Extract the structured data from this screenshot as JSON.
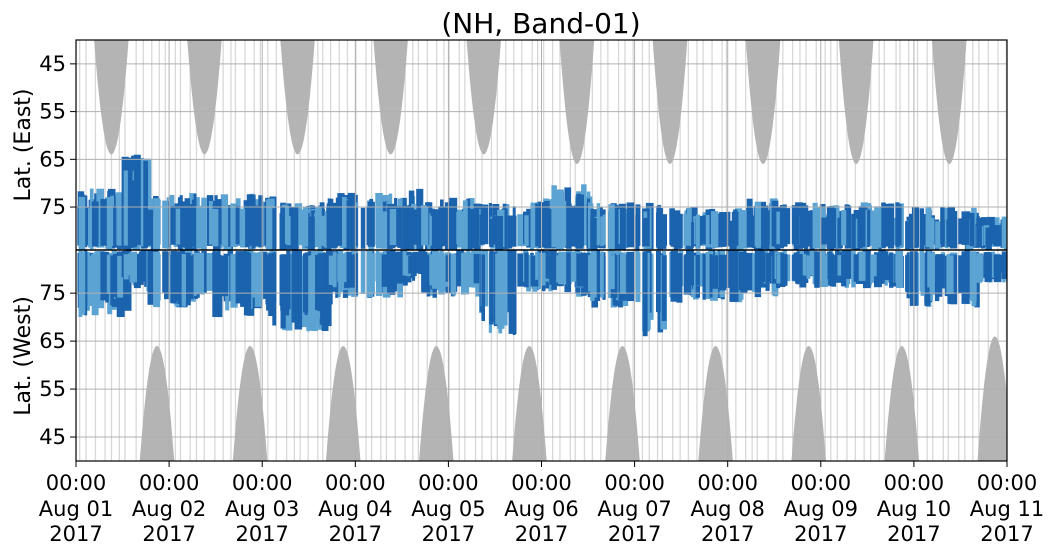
{
  "chart_data": {
    "type": "heatmap",
    "title": "(NH, Band-01)",
    "upper_panel": {
      "ylabel": "Lat. (East)",
      "yticks": [
        45,
        55,
        65,
        75
      ],
      "ylim": [
        40,
        84
      ]
    },
    "lower_panel": {
      "ylabel": "Lat. (West)",
      "yticks": [
        75,
        65,
        55,
        45
      ],
      "ylim": [
        40,
        84
      ]
    },
    "x_ticks": [
      {
        "time": "00:00",
        "date": "Aug 01",
        "year": "2017"
      },
      {
        "time": "00:00",
        "date": "Aug 02",
        "year": "2017"
      },
      {
        "time": "00:00",
        "date": "Aug 03",
        "year": "2017"
      },
      {
        "time": "00:00",
        "date": "Aug 04",
        "year": "2017"
      },
      {
        "time": "00:00",
        "date": "Aug 05",
        "year": "2017"
      },
      {
        "time": "00:00",
        "date": "Aug 06",
        "year": "2017"
      },
      {
        "time": "00:00",
        "date": "Aug 07",
        "year": "2017"
      },
      {
        "time": "00:00",
        "date": "Aug 08",
        "year": "2017"
      },
      {
        "time": "00:00",
        "date": "Aug 09",
        "year": "2017"
      },
      {
        "time": "00:00",
        "date": "Aug 10",
        "year": "2017"
      },
      {
        "time": "00:00",
        "date": "Aug 11",
        "year": "2017"
      }
    ],
    "x_range": [
      "2017-08-01 00:00",
      "2017-08-11 00:00"
    ],
    "grid": true,
    "colors": {
      "coverage_gray": "#b4b4b4",
      "dark_blue": "#1b63ad",
      "light_blue": "#5ba3d3",
      "divider": "#000000",
      "grid": "#b0b0b0"
    },
    "gray_lobes_upper": [
      {
        "center_day": 0.38,
        "min_lat": 64
      },
      {
        "center_day": 1.38,
        "min_lat": 64
      },
      {
        "center_day": 2.38,
        "min_lat": 64
      },
      {
        "center_day": 3.38,
        "min_lat": 64
      },
      {
        "center_day": 4.38,
        "min_lat": 64
      },
      {
        "center_day": 5.38,
        "min_lat": 66
      },
      {
        "center_day": 6.38,
        "min_lat": 66
      },
      {
        "center_day": 7.38,
        "min_lat": 66
      },
      {
        "center_day": 8.38,
        "min_lat": 66
      },
      {
        "center_day": 9.38,
        "min_lat": 66
      }
    ],
    "gray_lobes_lower": [
      {
        "center_day": 0.87,
        "min_lat": 64
      },
      {
        "center_day": 1.87,
        "min_lat": 64
      },
      {
        "center_day": 2.87,
        "min_lat": 64
      },
      {
        "center_day": 3.87,
        "min_lat": 64
      },
      {
        "center_day": 4.87,
        "min_lat": 64
      },
      {
        "center_day": 5.87,
        "min_lat": 64
      },
      {
        "center_day": 6.87,
        "min_lat": 64
      },
      {
        "center_day": 7.87,
        "min_lat": 64
      },
      {
        "center_day": 8.87,
        "min_lat": 64
      },
      {
        "center_day": 9.87,
        "min_lat": 66
      }
    ],
    "coverage_clusters": [
      {
        "start_day": 0.0,
        "end_day": 0.55,
        "east_lat": 71,
        "west_lat": 70
      },
      {
        "start_day": 0.45,
        "end_day": 0.75,
        "east_lat": 64,
        "west_lat": 76
      },
      {
        "start_day": 0.75,
        "end_day": 1.45,
        "east_lat": 72,
        "west_lat": 72
      },
      {
        "start_day": 1.45,
        "end_day": 2.1,
        "east_lat": 72,
        "west_lat": 70
      },
      {
        "start_day": 2.1,
        "end_day": 2.7,
        "east_lat": 74,
        "west_lat": 67
      },
      {
        "start_day": 2.7,
        "end_day": 3.5,
        "east_lat": 72,
        "west_lat": 74
      },
      {
        "start_day": 3.5,
        "end_day": 3.7,
        "east_lat": 71,
        "west_lat": 77
      },
      {
        "start_day": 3.7,
        "end_day": 4.3,
        "east_lat": 73,
        "west_lat": 74
      },
      {
        "start_day": 4.3,
        "end_day": 4.7,
        "east_lat": 74,
        "west_lat": 66
      },
      {
        "start_day": 4.7,
        "end_day": 5.1,
        "east_lat": 73,
        "west_lat": 75
      },
      {
        "start_day": 5.1,
        "end_day": 5.5,
        "east_lat": 70,
        "west_lat": 74
      },
      {
        "start_day": 5.5,
        "end_day": 6.05,
        "east_lat": 74,
        "west_lat": 72
      },
      {
        "start_day": 6.05,
        "end_day": 6.3,
        "east_lat": 74,
        "west_lat": 66
      },
      {
        "start_day": 6.3,
        "end_day": 7.2,
        "east_lat": 75,
        "west_lat": 73
      },
      {
        "start_day": 7.2,
        "end_day": 7.5,
        "east_lat": 73,
        "west_lat": 74
      },
      {
        "start_day": 7.5,
        "end_day": 8.35,
        "east_lat": 74,
        "west_lat": 76
      },
      {
        "start_day": 8.35,
        "end_day": 8.9,
        "east_lat": 74,
        "west_lat": 76
      },
      {
        "start_day": 8.9,
        "end_day": 9.65,
        "east_lat": 75,
        "west_lat": 72
      },
      {
        "start_day": 9.65,
        "end_day": 10.0,
        "east_lat": 77,
        "west_lat": 77
      }
    ]
  }
}
